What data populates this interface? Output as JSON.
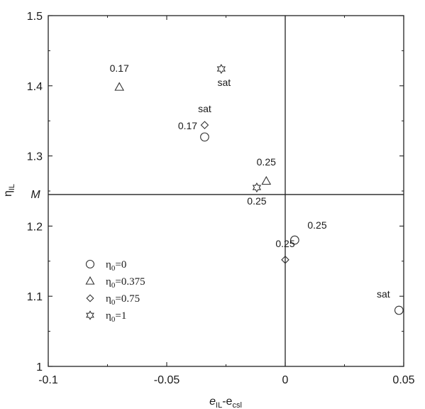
{
  "chart_data": {
    "type": "scatter",
    "title": "",
    "xlabel": {
      "main": "e",
      "sub1": "IL",
      "dash": "-e",
      "sub2": "csl"
    },
    "ylabel": {
      "main": "η",
      "sub": "IL"
    },
    "xlim": [
      -0.1,
      0.05
    ],
    "ylim": [
      1.0,
      1.5
    ],
    "x_ticks": [
      {
        "value": -0.1,
        "label": "-0.1"
      },
      {
        "value": -0.05,
        "label": "-0.05"
      },
      {
        "value": 0,
        "label": "0"
      },
      {
        "value": 0.05,
        "label": "0.05"
      }
    ],
    "y_ticks": [
      {
        "value": 1.0,
        "label": "1"
      },
      {
        "value": 1.1,
        "label": "1.1"
      },
      {
        "value": 1.2,
        "label": "1.2"
      },
      {
        "value": 1.3,
        "label": "1.3"
      },
      {
        "value": 1.4,
        "label": "1.4"
      },
      {
        "value": 1.5,
        "label": "1.5"
      }
    ],
    "reference_lines": {
      "vertical_x": 0,
      "horizontal_y": 1.245,
      "horizontal_label": "M"
    },
    "grid": false,
    "legend": {
      "position": "bottom-left"
    },
    "series": [
      {
        "name": "η0=0",
        "legend": {
          "main": "η",
          "sub": "0",
          "rest": "=0"
        },
        "marker": "circle",
        "points": [
          {
            "x": -0.034,
            "y": 1.327,
            "label": ""
          },
          {
            "x": 0.004,
            "y": 1.18,
            "label": "0.25"
          },
          {
            "x": 0.048,
            "y": 1.08,
            "label": "sat"
          }
        ]
      },
      {
        "name": "η0=0.375",
        "legend": {
          "main": "η",
          "sub": "0",
          "rest": "=0.375"
        },
        "marker": "triangle",
        "points": [
          {
            "x": -0.07,
            "y": 1.398,
            "label": "0.17"
          },
          {
            "x": -0.008,
            "y": 1.264,
            "label": "0.25"
          }
        ]
      },
      {
        "name": "η0=0.75",
        "legend": {
          "main": "η",
          "sub": "0",
          "rest": "=0.75"
        },
        "marker": "diamond",
        "points": [
          {
            "x": -0.034,
            "y": 1.344,
            "label": "sat"
          },
          {
            "x": 0,
            "y": 1.152,
            "label": "0.25"
          }
        ],
        "extra_labels": [
          {
            "x": -0.034,
            "y": 1.344,
            "label": "0.17"
          }
        ]
      },
      {
        "name": "η0=1",
        "legend": {
          "main": "η",
          "sub": "0",
          "rest": "=1"
        },
        "marker": "star",
        "points": [
          {
            "x": -0.027,
            "y": 1.424,
            "label": "sat"
          },
          {
            "x": -0.012,
            "y": 1.255,
            "label": "0.25"
          }
        ]
      }
    ]
  }
}
